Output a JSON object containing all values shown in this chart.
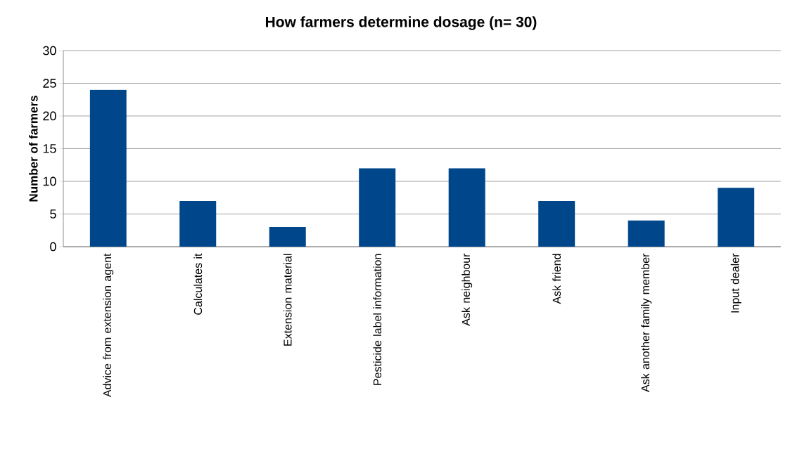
{
  "chart_data": {
    "type": "bar",
    "title": "How farmers determine dosage (n= 30)",
    "ylabel": "Number of farmers",
    "categories": [
      "Advice from extension agent",
      "Calculates it",
      "Extension material",
      "Pesticide label information",
      "Ask neighbour",
      "Ask friend",
      "Ask another family member",
      "Input dealer"
    ],
    "values": [
      24,
      7,
      3,
      12,
      12,
      7,
      4,
      9
    ],
    "color": "#00468b",
    "ylim": [
      0,
      30
    ],
    "yticks": [
      0,
      5,
      10,
      15,
      20,
      25,
      30
    ],
    "grid": "y"
  }
}
